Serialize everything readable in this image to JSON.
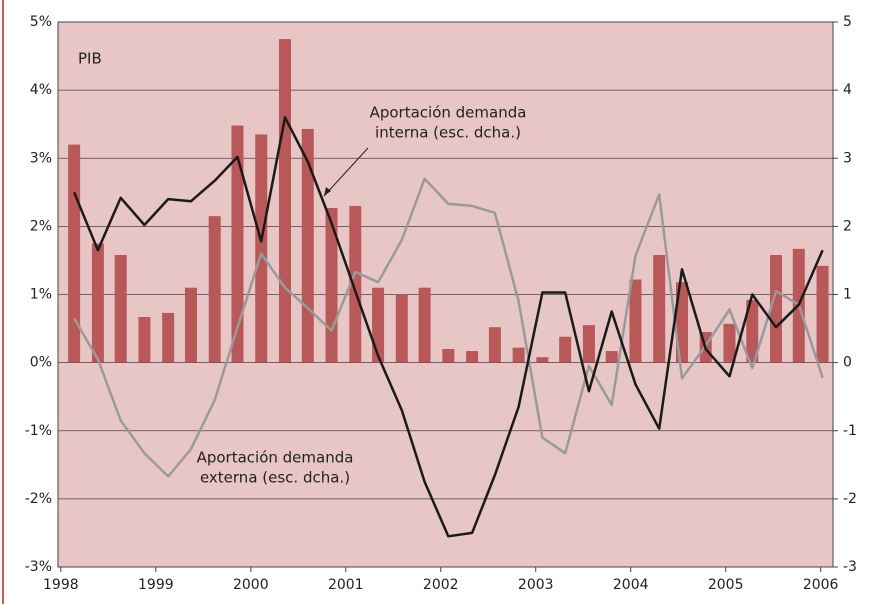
{
  "chart_data": {
    "type": "bar-line",
    "annotations": [
      {
        "lines": [
          "PIB"
        ]
      },
      {
        "lines": [
          "Aportación demanda",
          "interna (esc. dcha.)"
        ]
      },
      {
        "lines": [
          "Aportación demanda",
          "externa (esc. dcha.)"
        ]
      }
    ],
    "x": [
      1998.14,
      1998.39,
      1998.63,
      1998.88,
      1999.13,
      1999.37,
      1999.62,
      1999.86,
      2000.11,
      2000.36,
      2000.6,
      2000.85,
      2001.1,
      2001.34,
      2001.59,
      2001.83,
      2002.08,
      2002.33,
      2002.57,
      2002.82,
      2003.07,
      2003.31,
      2003.56,
      2003.8,
      2004.05,
      2004.3,
      2004.54,
      2004.79,
      2005.04,
      2005.28,
      2005.53,
      2005.77,
      2006.02
    ],
    "series": [
      {
        "name": "PIB",
        "kind": "bar",
        "color": "#b85858",
        "values": [
          3.2,
          1.75,
          1.58,
          0.67,
          0.73,
          1.1,
          2.15,
          3.48,
          3.35,
          4.75,
          3.43,
          2.27,
          2.3,
          1.1,
          1.0,
          1.1,
          0.2,
          0.17,
          0.52,
          0.22,
          0.08,
          0.38,
          0.55,
          0.17,
          1.22,
          1.58,
          1.18,
          0.45,
          0.57,
          0.92,
          1.58,
          1.67,
          1.42
        ]
      },
      {
        "kind": "line",
        "axis": "y2",
        "color": "#1a1a1a",
        "values": [
          2.5,
          1.65,
          2.42,
          2.02,
          2.4,
          2.37,
          2.67,
          3.02,
          1.78,
          3.6,
          2.95,
          2.05,
          1.05,
          0.1,
          -0.7,
          -1.75,
          -2.55,
          -2.5,
          -1.65,
          -0.65,
          1.03,
          1.03,
          -0.42,
          0.75,
          -0.32,
          -0.97,
          1.37,
          0.2,
          -0.2,
          1.0,
          0.52,
          0.85,
          1.65
        ]
      },
      {
        "kind": "line",
        "axis": "y2",
        "color": "#9a9a9a",
        "values": [
          0.65,
          0.05,
          -0.85,
          -1.33,
          -1.67,
          -1.27,
          -0.55,
          0.52,
          1.6,
          1.1,
          0.8,
          0.47,
          1.33,
          1.18,
          1.8,
          2.7,
          2.33,
          2.3,
          2.2,
          0.9,
          -1.1,
          -1.33,
          -0.05,
          -0.62,
          1.57,
          2.47,
          -0.23,
          0.25,
          0.78,
          -0.08,
          1.05,
          0.85,
          -0.22
        ]
      }
    ],
    "xlim": [
      1997.97,
      2006.13
    ],
    "xticks": [
      1998,
      1999,
      2000,
      2001,
      2002,
      2003,
      2004,
      2005,
      2006
    ],
    "ylim": [
      -3,
      5
    ],
    "yticks": [
      {
        "value": -3,
        "label": "-3%"
      },
      {
        "value": -2,
        "label": "-2%"
      },
      {
        "value": -1,
        "label": "-1%"
      },
      {
        "value": 0,
        "label": "0%"
      },
      {
        "value": 1,
        "label": "1%"
      },
      {
        "value": 2,
        "label": "2%"
      },
      {
        "value": 3,
        "label": "3%"
      },
      {
        "value": 4,
        "label": "4%"
      },
      {
        "value": 5,
        "label": "5%"
      }
    ],
    "y2lim": [
      -3,
      5
    ],
    "y2ticks": [
      -3,
      -2,
      -1,
      0,
      1,
      2,
      3,
      4,
      5
    ],
    "grid": true,
    "background": "#e9c6c6"
  }
}
